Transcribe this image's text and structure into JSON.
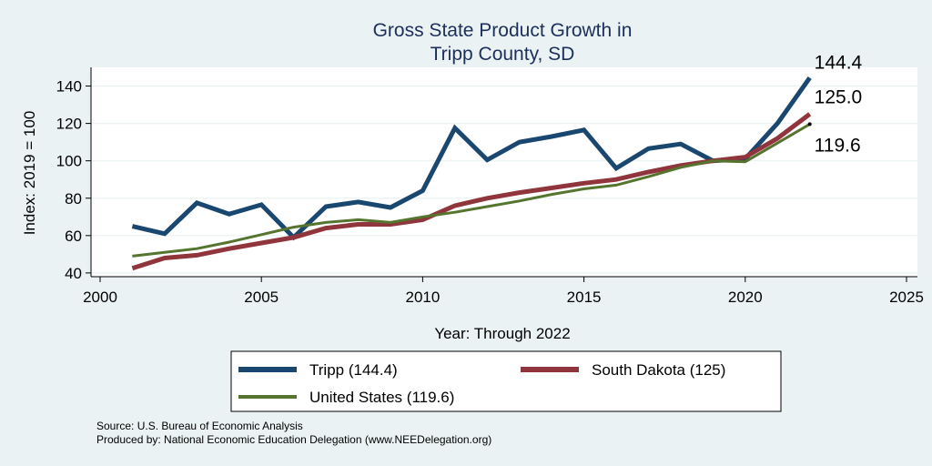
{
  "chart_data": {
    "type": "line",
    "title": [
      "Gross State Product Growth in",
      "Tripp County, SD"
    ],
    "xlabel": "Year: Through 2022",
    "ylabel": "Index: 2019 = 100",
    "xlim": [
      2000,
      2025
    ],
    "ylim": [
      38,
      150
    ],
    "xticks": [
      2000,
      2005,
      2010,
      2015,
      2020,
      2025
    ],
    "yticks": [
      40,
      60,
      80,
      100,
      120,
      140
    ],
    "grid": true,
    "x": [
      2001,
      2002,
      2003,
      2004,
      2005,
      2006,
      2007,
      2008,
      2009,
      2010,
      2011,
      2012,
      2013,
      2014,
      2015,
      2016,
      2017,
      2018,
      2019,
      2020,
      2021,
      2022
    ],
    "series": [
      {
        "name": "Tripp  (144.4)",
        "color": "#1a476f",
        "values": [
          65,
          61,
          77.5,
          71.5,
          76.5,
          59,
          75.5,
          78,
          75,
          84,
          117.5,
          100.5,
          110,
          113,
          116.5,
          96,
          106.5,
          109,
          100,
          101,
          120,
          144.4
        ]
      },
      {
        "name": "South Dakota (125)",
        "color": "#90353b",
        "values": [
          42.5,
          48,
          49.5,
          53,
          56,
          59,
          64,
          66,
          66,
          68.5,
          76,
          80,
          83,
          85.5,
          88,
          90,
          94,
          97.5,
          100,
          102,
          112,
          125.0
        ]
      },
      {
        "name": "United States (119.6)",
        "color": "#55752f",
        "values": [
          49,
          51,
          53,
          56.5,
          60.5,
          64.5,
          67,
          68.5,
          67,
          70,
          72.5,
          75.5,
          78.5,
          82,
          85,
          87,
          91.5,
          96.5,
          100,
          99.5,
          109.5,
          119.6
        ]
      }
    ],
    "end_labels": [
      "144.4",
      "125.0",
      "119.6"
    ],
    "legend_position": "bottom"
  },
  "footer": {
    "source": "Source: U.S. Bureau of Economic Analysis",
    "produced": "Produced by: National Economic Education Delegation (www.NEEDelegation.org)"
  }
}
